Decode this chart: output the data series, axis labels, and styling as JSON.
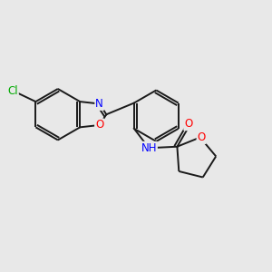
{
  "background_color": "#e8e8e8",
  "bond_color": "#1a1a1a",
  "atom_colors": {
    "N": "#0000ff",
    "O": "#ff0000",
    "Cl": "#00aa00",
    "C": "#1a1a1a"
  },
  "lw": 1.4,
  "fontsize": 8.5
}
